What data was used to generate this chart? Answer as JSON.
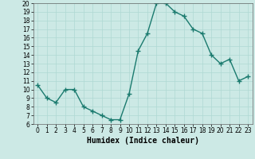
{
  "xlabel": "Humidex (Indice chaleur)",
  "x": [
    0,
    1,
    2,
    3,
    4,
    5,
    6,
    7,
    8,
    9,
    10,
    11,
    12,
    13,
    14,
    15,
    16,
    17,
    18,
    19,
    20,
    21,
    22,
    23
  ],
  "y": [
    10.5,
    9,
    8.5,
    10,
    10,
    8,
    7.5,
    7,
    6.5,
    6.5,
    9.5,
    14.5,
    16.5,
    20,
    20,
    19,
    18.5,
    17,
    16.5,
    14,
    13,
    13.5,
    11,
    11.5
  ],
  "ylim": [
    6,
    20
  ],
  "xlim": [
    -0.5,
    23.5
  ],
  "yticks": [
    6,
    7,
    8,
    9,
    10,
    11,
    12,
    13,
    14,
    15,
    16,
    17,
    18,
    19,
    20
  ],
  "xticks": [
    0,
    1,
    2,
    3,
    4,
    5,
    6,
    7,
    8,
    9,
    10,
    11,
    12,
    13,
    14,
    15,
    16,
    17,
    18,
    19,
    20,
    21,
    22,
    23
  ],
  "line_color": "#1a7a6e",
  "bg_color": "#cce9e5",
  "grid_color": "#afd8d3",
  "marker": "+",
  "marker_size": 4,
  "linewidth": 1.0,
  "tick_fontsize": 5.5,
  "xlabel_fontsize": 7.0
}
